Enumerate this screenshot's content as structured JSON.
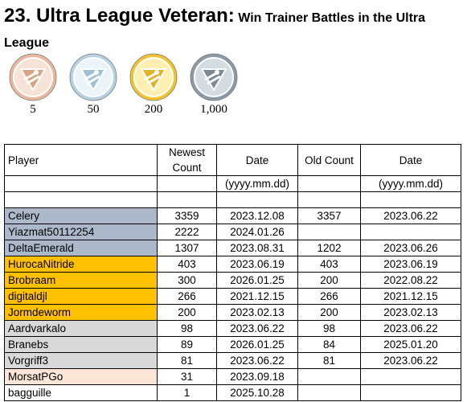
{
  "title": {
    "main": "23. Ultra League Veteran:",
    "sub": "Win Trainer Battles in the Ultra League"
  },
  "medals": [
    {
      "tier": "bronze",
      "label": "5",
      "colors": {
        "ring": "#e9b89c",
        "inner": "#f7e3d6",
        "tri": "#d9a486"
      }
    },
    {
      "tier": "silver",
      "label": "50",
      "colors": {
        "ring": "#b7d3e3",
        "inner": "#eaf4f9",
        "tri": "#9fc0d4"
      }
    },
    {
      "tier": "gold",
      "label": "200",
      "colors": {
        "ring": "#f2c42c",
        "inner": "#fdf0b2",
        "tri": "#e2b326"
      }
    },
    {
      "tier": "platinum",
      "label": "1,000",
      "colors": {
        "ring": "#8b9aa4",
        "inner": "#d3dce1",
        "tri": "#7a8a94"
      }
    }
  ],
  "table": {
    "headers": {
      "player": "Player",
      "newest_count": "Newest Count",
      "date1": "Date",
      "old_count": "Old Count",
      "date2": "Date"
    },
    "date_format_1": "(yyyy.mm.dd)",
    "date_format_2": "(yyyy.mm.dd)",
    "rows": [
      {
        "player": "Celery",
        "newest": "3359",
        "date": "2023.12.08",
        "old": "3357",
        "old_date": "2023.06.22",
        "tier": "veteran"
      },
      {
        "player": "Yiazmat50112254",
        "newest": "2222",
        "date": "2024.01.26",
        "old": "",
        "old_date": "",
        "tier": "veteran"
      },
      {
        "player": "DeltaEmerald",
        "newest": "1307",
        "date": "2023.08.31",
        "old": "1202",
        "old_date": "2023.06.26",
        "tier": "veteran"
      },
      {
        "player": "HurocaNitride",
        "newest": "403",
        "date": "2023.06.19",
        "old": "403",
        "old_date": "2023.06.19",
        "tier": "gold"
      },
      {
        "player": "Brobraam",
        "newest": "300",
        "date": "2026.01.25",
        "old": "200",
        "old_date": "2022.08.22",
        "tier": "gold"
      },
      {
        "player": "digitaldjl",
        "newest": "266",
        "date": "2021.12.15",
        "old": "266",
        "old_date": "2021.12.15",
        "tier": "gold"
      },
      {
        "player": "Jormdeworm",
        "newest": "200",
        "date": "2023.02.13",
        "old": "200",
        "old_date": "2023.02.13",
        "tier": "gold"
      },
      {
        "player": "Aardvarkalo",
        "newest": "98",
        "date": "2023.06.22",
        "old": "98",
        "old_date": "2023.06.22",
        "tier": "silver"
      },
      {
        "player": "Branebs",
        "newest": "89",
        "date": "2026.01.25",
        "old": "84",
        "old_date": "2025.01.20",
        "tier": "silver"
      },
      {
        "player": "Vorgriff3",
        "newest": "81",
        "date": "2023.06.22",
        "old": "81",
        "old_date": "2023.06.22",
        "tier": "silver"
      },
      {
        "player": "MorsatPGo",
        "newest": "31",
        "date": "2023.09.18",
        "old": "",
        "old_date": "",
        "tier": "bronze"
      },
      {
        "player": "bagguille",
        "newest": "1",
        "date": "2025.10.28",
        "old": "",
        "old_date": "",
        "tier": "none"
      }
    ]
  }
}
